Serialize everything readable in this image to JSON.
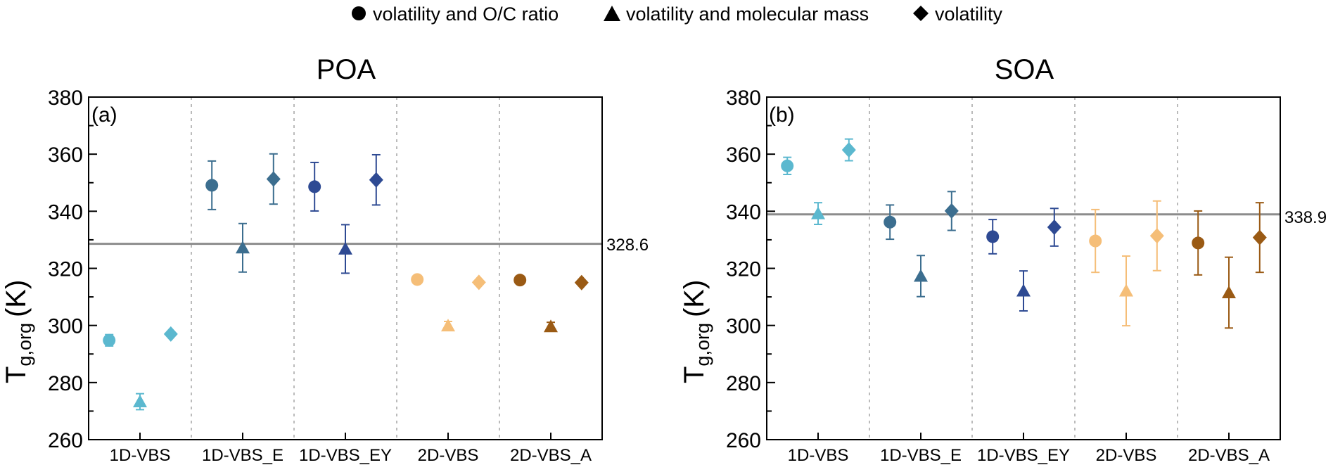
{
  "legend": {
    "items": [
      {
        "marker": "circle",
        "label": "volatility and O/C ratio"
      },
      {
        "marker": "triangle",
        "label": "volatility and molecular mass"
      },
      {
        "marker": "diamond",
        "label": "volatility"
      }
    ]
  },
  "colors": {
    "1D-VBS": "#5BB8CF",
    "1D-VBS_E": "#3C6E8F",
    "1D-VBS_EY": "#2E4A93",
    "2D-VBS": "#F5BE78",
    "2D-VBS_A": "#9A5A14",
    "reference_line": "#8C8C8C",
    "divider": "#BBBBBB"
  },
  "chart_data": [
    {
      "type": "scatter",
      "panel": "(a)",
      "title": "POA",
      "xlabel": "",
      "ylabel": "T",
      "ylabel_sub": "g,org",
      "ylabel_unit": "(K)",
      "ylim": [
        260,
        380
      ],
      "yticks": [
        260,
        280,
        300,
        320,
        340,
        360,
        380
      ],
      "grid": false,
      "categories": [
        "1D-VBS",
        "1D-VBS_E",
        "1D-VBS_EY",
        "2D-VBS",
        "2D-VBS_A"
      ],
      "reference_line": {
        "value": 328.6,
        "label": "328.6"
      },
      "series": [
        {
          "name": "volatility and O/C ratio",
          "marker": "circle",
          "values": [
            294.8,
            349.1,
            348.6,
            316.1,
            315.9
          ],
          "errors": [
            2.0,
            8.5,
            8.5,
            1.0,
            1.0
          ]
        },
        {
          "name": "volatility and molecular mass",
          "marker": "triangle",
          "values": [
            273.3,
            327.2,
            326.8,
            299.9,
            299.6
          ],
          "errors": [
            2.8,
            8.5,
            8.5,
            1.5,
            1.5
          ]
        },
        {
          "name": "volatility",
          "marker": "diamond",
          "values": [
            297.0,
            351.3,
            351.0,
            315.1,
            315.0
          ],
          "errors": [
            0.5,
            8.8,
            8.8,
            0.5,
            0.5
          ]
        }
      ]
    },
    {
      "type": "scatter",
      "panel": "(b)",
      "title": "SOA",
      "xlabel": "",
      "ylabel": "T",
      "ylabel_sub": "g,org",
      "ylabel_unit": "(K)",
      "ylim": [
        260,
        380
      ],
      "yticks": [
        260,
        280,
        300,
        320,
        340,
        360,
        380
      ],
      "grid": false,
      "categories": [
        "1D-VBS",
        "1D-VBS_E",
        "1D-VBS_EY",
        "2D-VBS",
        "2D-VBS_A"
      ],
      "reference_line": {
        "value": 338.9,
        "label": "338.9"
      },
      "series": [
        {
          "name": "volatility and O/C ratio",
          "marker": "circle",
          "values": [
            355.9,
            336.2,
            331.1,
            329.6,
            328.9
          ],
          "errors": [
            3.0,
            6.0,
            6.0,
            11.0,
            11.2
          ]
        },
        {
          "name": "volatility and molecular mass",
          "marker": "triangle",
          "values": [
            339.2,
            317.3,
            312.1,
            312.1,
            311.5
          ],
          "errors": [
            3.8,
            7.2,
            7.0,
            12.2,
            12.4
          ]
        },
        {
          "name": "volatility",
          "marker": "diamond",
          "values": [
            361.5,
            340.1,
            334.4,
            331.4,
            330.8
          ],
          "errors": [
            3.8,
            6.8,
            6.6,
            12.2,
            12.2
          ]
        }
      ]
    }
  ]
}
